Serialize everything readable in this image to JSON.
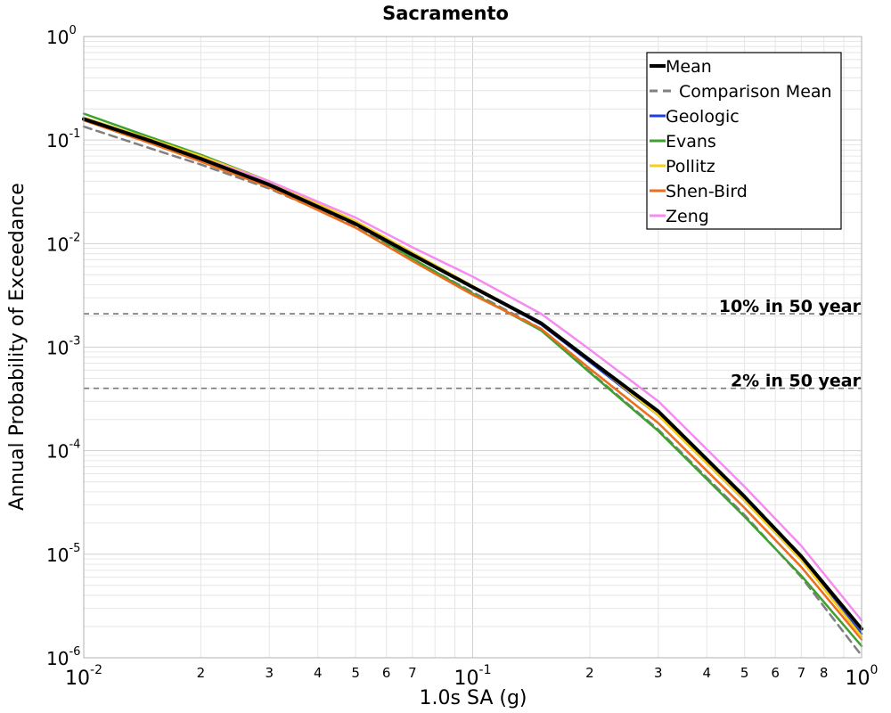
{
  "chart_data": {
    "type": "line",
    "title": "Sacramento",
    "xlabel": "1.0s SA (g)",
    "ylabel": "Annual Probability of Exceedance",
    "xscale": "log",
    "yscale": "log",
    "xlim": [
      0.01,
      1.0
    ],
    "ylim": [
      1e-06,
      1.0
    ],
    "grid": true,
    "legend_position": "top-right",
    "x_major_ticks": [
      {
        "value": 0.01,
        "base": "10",
        "exp": "-2"
      },
      {
        "value": 0.1,
        "base": "10",
        "exp": "-1"
      },
      {
        "value": 1.0,
        "base": "10",
        "exp": "0"
      }
    ],
    "x_minor_tick_labels": [
      "2",
      "3",
      "4",
      "5",
      "6",
      "7",
      "2",
      "3",
      "4",
      "5",
      "6",
      "7",
      "8"
    ],
    "y_major_ticks": [
      {
        "value": 1.0,
        "base": "10",
        "exp": "0"
      },
      {
        "value": 0.1,
        "base": "10",
        "exp": "-1"
      },
      {
        "value": 0.01,
        "base": "10",
        "exp": "-2"
      },
      {
        "value": 0.001,
        "base": "10",
        "exp": "-3"
      },
      {
        "value": 0.0001,
        "base": "10",
        "exp": "-4"
      },
      {
        "value": 1e-05,
        "base": "10",
        "exp": "-5"
      },
      {
        "value": 1e-06,
        "base": "10",
        "exp": "-6"
      }
    ],
    "x": [
      0.01,
      0.015,
      0.02,
      0.03,
      0.05,
      0.07,
      0.1,
      0.15,
      0.2,
      0.3,
      0.5,
      0.7,
      1.0
    ],
    "series": [
      {
        "name": "Mean",
        "color": "#000000",
        "style": "solid",
        "width": 4,
        "values": [
          0.16,
          0.097,
          0.066,
          0.037,
          0.0155,
          0.0078,
          0.0038,
          0.0017,
          0.00075,
          0.00024,
          3.6e-05,
          9.5e-06,
          1.9e-06
        ]
      },
      {
        "name": "Comparison Mean",
        "color": "#808080",
        "style": "dashed",
        "width": 2.5,
        "values": [
          0.135,
          0.082,
          0.058,
          0.034,
          0.0148,
          0.0071,
          0.0034,
          0.0015,
          0.00058,
          0.00016,
          2.4e-05,
          6e-06,
          1.05e-06
        ]
      },
      {
        "name": "Geologic",
        "color": "#1f3fe0",
        "style": "solid",
        "width": 2.5,
        "values": [
          0.162,
          0.099,
          0.067,
          0.0375,
          0.0157,
          0.0079,
          0.0038,
          0.00165,
          0.00072,
          0.00022,
          3.3e-05,
          8.8e-06,
          1.7e-06
        ]
      },
      {
        "name": "Evans",
        "color": "#3fa032",
        "style": "solid",
        "width": 2.5,
        "values": [
          0.18,
          0.105,
          0.072,
          0.04,
          0.0155,
          0.0072,
          0.0033,
          0.00145,
          0.00057,
          0.000155,
          2.3e-05,
          6.2e-06,
          1.3e-06
        ]
      },
      {
        "name": "Pollitz",
        "color": "#f5cf1a",
        "style": "solid",
        "width": 2.5,
        "values": [
          0.165,
          0.101,
          0.07,
          0.04,
          0.0165,
          0.0082,
          0.0039,
          0.0017,
          0.00075,
          0.00022,
          3.3e-05,
          8.8e-06,
          1.6e-06
        ]
      },
      {
        "name": "Shen-Bird",
        "color": "#ee6d1c",
        "style": "solid",
        "width": 2.5,
        "values": [
          0.155,
          0.092,
          0.062,
          0.035,
          0.0142,
          0.0068,
          0.0032,
          0.0015,
          0.00062,
          0.000185,
          2.8e-05,
          7.5e-06,
          1.5e-06
        ]
      },
      {
        "name": "Zeng",
        "color": "#f58cf0",
        "style": "solid",
        "width": 2.5,
        "values": [
          0.16,
          0.097,
          0.067,
          0.04,
          0.0178,
          0.0092,
          0.0048,
          0.0021,
          0.00095,
          0.0003,
          4.5e-05,
          1.2e-05,
          2.3e-06
        ]
      }
    ],
    "annotations": [
      {
        "text": "10% in 50 year",
        "y": 0.0021
      },
      {
        "text": "2% in 50 year",
        "y": 0.0004
      }
    ]
  }
}
